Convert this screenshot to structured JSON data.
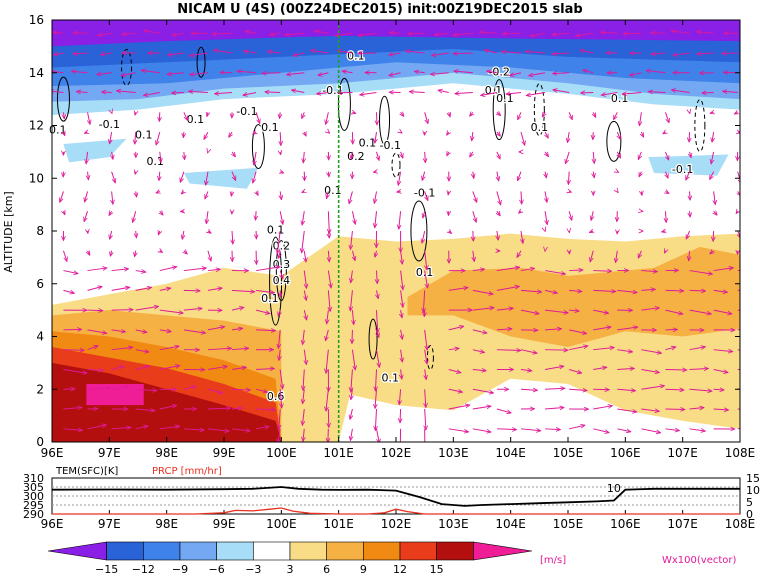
{
  "title": "NICAM U (4S) (00Z24DEC2015) init:00Z19DEC2015 slab",
  "chart_data": [
    {
      "type": "heatmap",
      "variable": "U",
      "ylabel": "ALTITUDE [km]",
      "ylim": [
        0,
        16
      ],
      "xlim": [
        96,
        108
      ],
      "x_ticks": [
        "96E",
        "97E",
        "98E",
        "99E",
        "100E",
        "101E",
        "102E",
        "103E",
        "104E",
        "105E",
        "106E",
        "107E",
        "108E"
      ],
      "y_ticks": [
        "0",
        "2",
        "4",
        "6",
        "8",
        "10",
        "12",
        "14",
        "16"
      ],
      "vertical_marker_x": 101,
      "vector_label": "Wx100(vector)",
      "colorbar": {
        "unit": "[m/s]",
        "tick_labels": [
          "−15",
          "−12",
          "−9",
          "−6",
          "−3",
          "3",
          "6",
          "9",
          "12",
          "15"
        ],
        "colors": [
          "#8a1fe6",
          "#2a62d8",
          "#3e82ea",
          "#74a8f2",
          "#a8ddf7",
          "#ffffff",
          "#f9dd86",
          "#f6b145",
          "#f08a12",
          "#e83c1a",
          "#b40f0f",
          "#f01e96"
        ]
      },
      "contour_labels": [
        {
          "text": "0.1",
          "x": 96.1,
          "y": 11.7
        },
        {
          "text": "-0.1",
          "x": 97.0,
          "y": 11.9
        },
        {
          "text": "0.1",
          "x": 97.6,
          "y": 11.5
        },
        {
          "text": "0.1",
          "x": 97.8,
          "y": 10.5
        },
        {
          "text": "0.1",
          "x": 98.5,
          "y": 12.1
        },
        {
          "text": "-0.1",
          "x": 99.4,
          "y": 12.4
        },
        {
          "text": "0.1",
          "x": 99.8,
          "y": 11.8
        },
        {
          "text": "-0.1",
          "x": 100.9,
          "y": 13.2
        },
        {
          "text": "0.1",
          "x": 101.3,
          "y": 14.5
        },
        {
          "text": "0.2",
          "x": 101.3,
          "y": 10.7
        },
        {
          "text": "0.1",
          "x": 101.5,
          "y": 11.2
        },
        {
          "text": "-0.1",
          "x": 101.9,
          "y": 11.1
        },
        {
          "text": "0.1",
          "x": 100.9,
          "y": 9.4
        },
        {
          "text": "-0.1",
          "x": 102.5,
          "y": 9.3
        },
        {
          "text": "-0.2",
          "x": 103.8,
          "y": 13.9
        },
        {
          "text": "0.1",
          "x": 103.7,
          "y": 13.2
        },
        {
          "text": "0.1",
          "x": 103.9,
          "y": 12.9
        },
        {
          "text": "0.1",
          "x": 104.5,
          "y": 11.8
        },
        {
          "text": "0.1",
          "x": 105.9,
          "y": 12.9
        },
        {
          "text": "-0.1",
          "x": 107.0,
          "y": 10.2
        },
        {
          "text": "0.1",
          "x": 99.9,
          "y": 7.9
        },
        {
          "text": "0.2",
          "x": 100.0,
          "y": 7.3
        },
        {
          "text": "0.3",
          "x": 100.0,
          "y": 6.6
        },
        {
          "text": "0.4",
          "x": 100.0,
          "y": 6.0
        },
        {
          "text": "0.1",
          "x": 99.8,
          "y": 5.3
        },
        {
          "text": "0.1",
          "x": 102.5,
          "y": 6.3
        },
        {
          "text": "0.1",
          "x": 101.9,
          "y": 2.3
        },
        {
          "text": "0.6",
          "x": 99.9,
          "y": 1.6
        }
      ]
    },
    {
      "type": "line",
      "ylabel_left": "TEM(SFC)[K]",
      "ylabel_right": "PRCP [mm/hr]",
      "left_ticks": [
        "310",
        "305",
        "300",
        "295",
        "290"
      ],
      "right_ticks": [
        "15",
        "10",
        "5",
        "0"
      ],
      "x_ticks": [
        "96E",
        "97E",
        "98E",
        "99E",
        "100E",
        "101E",
        "102E",
        "103E",
        "104E",
        "105E",
        "106E",
        "107E",
        "108E"
      ],
      "xlim": [
        96,
        108
      ],
      "left_ylim": [
        290,
        310
      ],
      "right_ylim": [
        0,
        15
      ],
      "series": [
        {
          "name": "TEM(SFC)[K]",
          "color": "#000000",
          "x": [
            96,
            97,
            98,
            99,
            99.5,
            100,
            100.3,
            100.7,
            101,
            101.5,
            102,
            102.4,
            102.8,
            103.2,
            103.5,
            104,
            104.5,
            105,
            105.5,
            105.8,
            106,
            106.5,
            107,
            107.5,
            108
          ],
          "y": [
            303.5,
            303.6,
            303.5,
            303.8,
            304,
            305,
            304,
            303.5,
            303.4,
            303.5,
            303,
            299.5,
            295.5,
            294.5,
            295,
            295.5,
            296,
            296.5,
            297,
            297.5,
            303.5,
            304,
            304,
            304,
            304
          ]
        },
        {
          "name": "PRCP [mm/hr]",
          "color": "#e83020",
          "x": [
            96,
            98.5,
            99,
            99.2,
            99.5,
            99.8,
            100,
            100.2,
            100.5,
            101,
            101.5,
            101.8,
            102,
            102.2,
            102.5,
            103,
            105,
            108
          ],
          "y": [
            0,
            0,
            0.5,
            1.5,
            1.3,
            2,
            2.5,
            1.2,
            0.3,
            0,
            0,
            0.5,
            2,
            1,
            0,
            0,
            0,
            0
          ]
        }
      ],
      "annotation": "10"
    }
  ]
}
